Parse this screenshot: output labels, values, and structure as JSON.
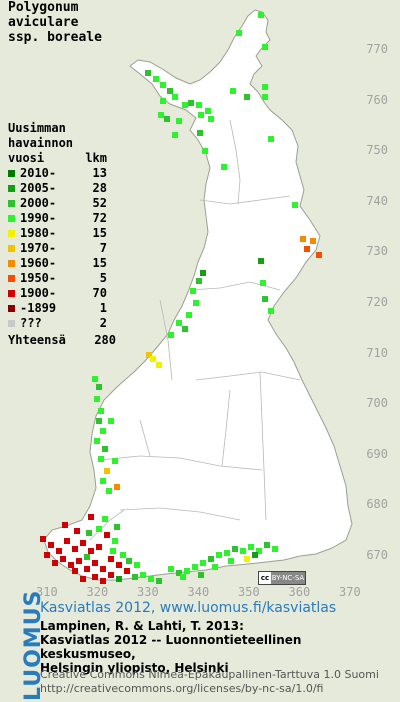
{
  "title": [
    "Polygonum",
    "aviculare",
    "ssp. boreale"
  ],
  "legend": {
    "heading": [
      "Uusimman",
      "havainnon"
    ],
    "col_year": "vuosi",
    "col_count": "lkm",
    "rows": [
      {
        "period": "2010-",
        "count": "13",
        "color": "#007a00"
      },
      {
        "period": "2005-",
        "count": "28",
        "color": "#139e13"
      },
      {
        "period": "2000-",
        "count": "52",
        "color": "#2ec22e"
      },
      {
        "period": "1990-",
        "count": "72",
        "color": "#2ef22e"
      },
      {
        "period": "1980-",
        "count": "15",
        "color": "#f2f200"
      },
      {
        "period": "1970-",
        "count": "7",
        "color": "#f2c400"
      },
      {
        "period": "1960-",
        "count": "15",
        "color": "#f28c00"
      },
      {
        "period": "1950-",
        "count": "5",
        "color": "#f25000"
      },
      {
        "period": "1900-",
        "count": "70",
        "color": "#d00000"
      },
      {
        "period": "-1899",
        "count": "1",
        "color": "#8a0000"
      },
      {
        "period": "???",
        "count": "2",
        "color": "#c8c8c8"
      }
    ],
    "total_label": "Yhteensä",
    "total_count": "280"
  },
  "y_ticks": [
    "770",
    "760",
    "750",
    "740",
    "730",
    "720",
    "710",
    "700",
    "690",
    "680",
    "670"
  ],
  "x_ticks": [
    "310",
    "320",
    "330",
    "340",
    "350",
    "360",
    "370"
  ],
  "cc_badge": {
    "logo": "cc",
    "text": "BY-NC-SA"
  },
  "brand": "LUOMUS",
  "footer": {
    "line1": "Kasviatlas 2012, www.luomus.fi/kasviatlas",
    "line2": "Lampinen, R. & Lahti, T. 2013:",
    "line3": "Kasviatlas 2012 -- Luonnontieteellinen keskusmuseo,",
    "line4": "Helsingin yliopisto, Helsinki",
    "line5": "Creative Commons Nimeä-Epäkaupallinen-Tarttuva 1.0 Suomi",
    "line6": "http://creativecommons.org/licenses/by-nc-sa/1.0/fi"
  },
  "colors": {
    "land": "#ffffff",
    "background": "#e6eadb",
    "border": "#b0b0b0",
    "tick": "#a2a2a2",
    "brand": "#2a7bbd"
  }
}
